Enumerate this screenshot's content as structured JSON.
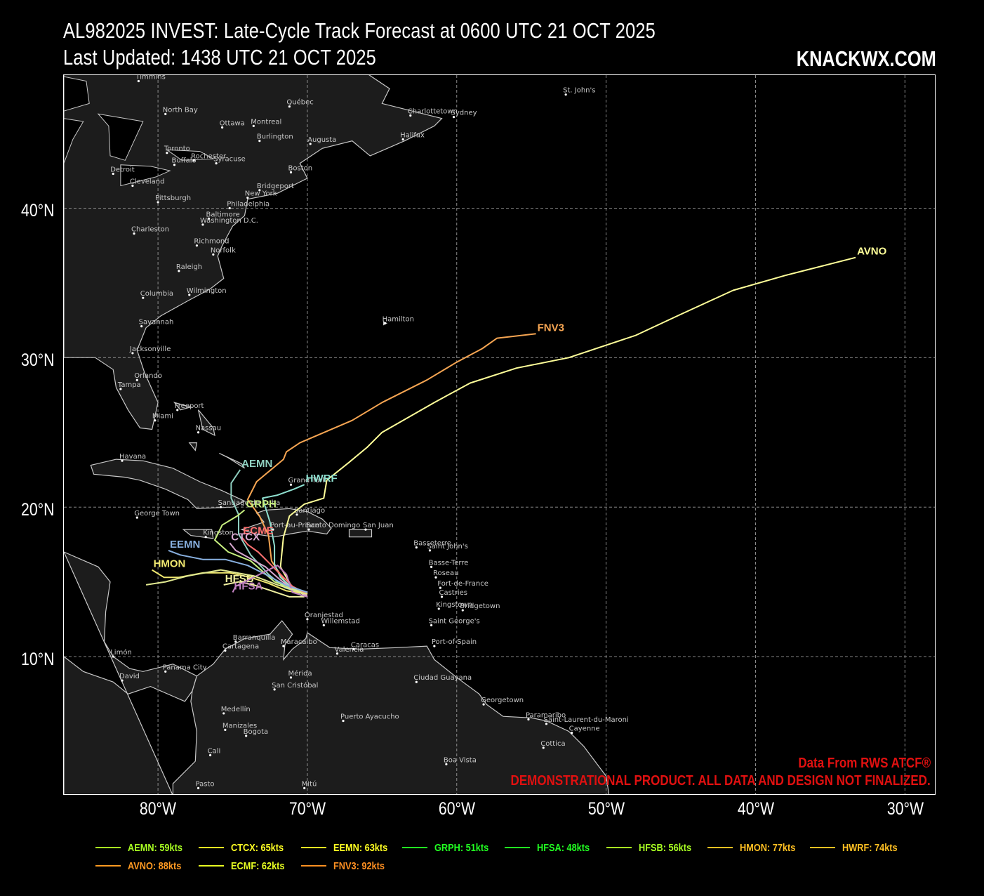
{
  "header": {
    "title_line1": "AL982025 INVEST: Late-Cycle Track Forecast at 0600 UTC 21 OCT 2025",
    "title_line2": "Last Updated: 1438 UTC 21 OCT 2025",
    "brand": "KNACKWX.COM"
  },
  "axes": {
    "lat_ticks": [
      "40°N",
      "30°N",
      "20°N",
      "10°N"
    ],
    "lon_ticks": [
      "80°W",
      "70°W",
      "60°W",
      "50°W",
      "40°W",
      "30°W"
    ],
    "lat_range": [
      0.7,
      48.9
    ],
    "lon_range": [
      -86.3,
      -27.9
    ],
    "grid": true
  },
  "credits": {
    "source": "Data From RWS ATCF®",
    "disclaimer": "DEMONSTRATIONAL PRODUCT. ALL DATA AND DESIGN NOT FINALIZED."
  },
  "cities": [
    {
      "name": "Timmins",
      "lat": 48.5,
      "lon": -81.3
    },
    {
      "name": "North Bay",
      "lat": 46.3,
      "lon": -79.5
    },
    {
      "name": "Ottawa",
      "lat": 45.4,
      "lon": -75.7
    },
    {
      "name": "Montreal",
      "lat": 45.5,
      "lon": -73.6
    },
    {
      "name": "Québec",
      "lat": 46.8,
      "lon": -71.2
    },
    {
      "name": "Charlottetown",
      "lat": 46.2,
      "lon": -63.1
    },
    {
      "name": "Sydney",
      "lat": 46.1,
      "lon": -60.2
    },
    {
      "name": "St. John's",
      "lat": 47.6,
      "lon": -52.7
    },
    {
      "name": "Halifax",
      "lat": 44.6,
      "lon": -63.6
    },
    {
      "name": "Augusta",
      "lat": 44.3,
      "lon": -69.8
    },
    {
      "name": "Burlington",
      "lat": 44.5,
      "lon": -73.2
    },
    {
      "name": "Toronto",
      "lat": 43.7,
      "lon": -79.4
    },
    {
      "name": "Rochester",
      "lat": 43.2,
      "lon": -77.6
    },
    {
      "name": "Syracuse",
      "lat": 43.0,
      "lon": -76.1
    },
    {
      "name": "Buffalo",
      "lat": 42.9,
      "lon": -78.9
    },
    {
      "name": "Detroit",
      "lat": 42.3,
      "lon": -83.0
    },
    {
      "name": "Boston",
      "lat": 42.4,
      "lon": -71.1
    },
    {
      "name": "Cleveland",
      "lat": 41.5,
      "lon": -81.7
    },
    {
      "name": "Bridgeport",
      "lat": 41.2,
      "lon": -73.2
    },
    {
      "name": "New York",
      "lat": 40.7,
      "lon": -74.0
    },
    {
      "name": "Pittsburgh",
      "lat": 40.4,
      "lon": -80.0
    },
    {
      "name": "Philadelphia",
      "lat": 40.0,
      "lon": -75.2
    },
    {
      "name": "Baltimore",
      "lat": 39.3,
      "lon": -76.6
    },
    {
      "name": "Washington D.C.",
      "lat": 38.9,
      "lon": -77.0
    },
    {
      "name": "Charleston",
      "lat": 38.3,
      "lon": -81.6
    },
    {
      "name": "Richmond",
      "lat": 37.5,
      "lon": -77.4
    },
    {
      "name": "Norfolk",
      "lat": 36.9,
      "lon": -76.3
    },
    {
      "name": "Raleigh",
      "lat": 35.8,
      "lon": -78.6
    },
    {
      "name": "Wilmington",
      "lat": 34.2,
      "lon": -77.9
    },
    {
      "name": "Columbia",
      "lat": 34.0,
      "lon": -81.0
    },
    {
      "name": "Savannah",
      "lat": 32.1,
      "lon": -81.1
    },
    {
      "name": "Jacksonville",
      "lat": 30.3,
      "lon": -81.7
    },
    {
      "name": "Orlando",
      "lat": 28.5,
      "lon": -81.4
    },
    {
      "name": "Tampa",
      "lat": 27.9,
      "lon": -82.5
    },
    {
      "name": "Freeport",
      "lat": 26.5,
      "lon": -78.7
    },
    {
      "name": "Miami",
      "lat": 25.8,
      "lon": -80.2
    },
    {
      "name": "Nassau",
      "lat": 25.0,
      "lon": -77.3
    },
    {
      "name": "Hamilton",
      "lat": 32.3,
      "lon": -64.8
    },
    {
      "name": "Havana",
      "lat": 23.1,
      "lon": -82.4
    },
    {
      "name": "Grand Turk",
      "lat": 21.5,
      "lon": -71.1
    },
    {
      "name": "Santiago de Cuba",
      "lat": 20.0,
      "lon": -75.8
    },
    {
      "name": "George Town",
      "lat": 19.3,
      "lon": -81.4
    },
    {
      "name": "Santiago",
      "lat": 19.5,
      "lon": -70.7
    },
    {
      "name": "Port-au-Prince",
      "lat": 18.5,
      "lon": -72.3
    },
    {
      "name": "Santo Domingo",
      "lat": 18.5,
      "lon": -69.9
    },
    {
      "name": "San Juan",
      "lat": 18.5,
      "lon": -66.1
    },
    {
      "name": "Kingston",
      "lat": 18.0,
      "lon": -76.8
    },
    {
      "name": "Basseterre",
      "lat": 17.3,
      "lon": -62.7
    },
    {
      "name": "Saint John's",
      "lat": 17.1,
      "lon": -61.8
    },
    {
      "name": "Basse-Terre",
      "lat": 16.0,
      "lon": -61.7
    },
    {
      "name": "Roseau",
      "lat": 15.3,
      "lon": -61.4
    },
    {
      "name": "Fort-de-France",
      "lat": 14.6,
      "lon": -61.1
    },
    {
      "name": "Castries",
      "lat": 14.0,
      "lon": -61.0
    },
    {
      "name": "Kingstown",
      "lat": 13.2,
      "lon": -61.2
    },
    {
      "name": "Bridgetown",
      "lat": 13.1,
      "lon": -59.6
    },
    {
      "name": "Saint George's",
      "lat": 12.1,
      "lon": -61.7
    },
    {
      "name": "Oranjestad",
      "lat": 12.5,
      "lon": -70.0
    },
    {
      "name": "Willemstad",
      "lat": 12.1,
      "lon": -68.9
    },
    {
      "name": "Barranquilla",
      "lat": 11.0,
      "lon": -74.8
    },
    {
      "name": "Cartagena",
      "lat": 10.4,
      "lon": -75.5
    },
    {
      "name": "Maracaibo",
      "lat": 10.7,
      "lon": -71.6
    },
    {
      "name": "Valencia",
      "lat": 10.2,
      "lon": -68.0
    },
    {
      "name": "Caracas",
      "lat": 10.5,
      "lon": -66.9
    },
    {
      "name": "Port-of-Spain",
      "lat": 10.7,
      "lon": -61.5
    },
    {
      "name": "Limón",
      "lat": 10.0,
      "lon": -83.0
    },
    {
      "name": "Panama City",
      "lat": 9.0,
      "lon": -79.5
    },
    {
      "name": "David",
      "lat": 8.4,
      "lon": -82.4
    },
    {
      "name": "Mérida",
      "lat": 8.6,
      "lon": -71.1
    },
    {
      "name": "San Cristóbal",
      "lat": 7.8,
      "lon": -72.2
    },
    {
      "name": "Ciudad Guayana",
      "lat": 8.3,
      "lon": -62.7
    },
    {
      "name": "Georgetown",
      "lat": 6.8,
      "lon": -58.2
    },
    {
      "name": "Paramaribo",
      "lat": 5.8,
      "lon": -55.2
    },
    {
      "name": "Saint-Laurent-du-Maroni",
      "lat": 5.5,
      "lon": -54.0
    },
    {
      "name": "Cayenne",
      "lat": 4.9,
      "lon": -52.3
    },
    {
      "name": "Cottica",
      "lat": 3.9,
      "lon": -54.2
    },
    {
      "name": "Medellín",
      "lat": 6.2,
      "lon": -75.6
    },
    {
      "name": "Puerto Ayacucho",
      "lat": 5.7,
      "lon": -67.6
    },
    {
      "name": "Manizales",
      "lat": 5.1,
      "lon": -75.5
    },
    {
      "name": "Bogota",
      "lat": 4.7,
      "lon": -74.1
    },
    {
      "name": "Cali",
      "lat": 3.4,
      "lon": -76.5
    },
    {
      "name": "Boa Vista",
      "lat": 2.8,
      "lon": -60.7
    },
    {
      "name": "Pasto",
      "lat": 1.2,
      "lon": -77.3
    },
    {
      "name": "Mitú",
      "lat": 1.2,
      "lon": -70.2
    }
  ],
  "tracks": [
    {
      "model": "AVNO",
      "color": "#ffff99",
      "label_pos": "end",
      "points": [
        [
          14.0,
          -70.0
        ],
        [
          14.6,
          -71.0
        ],
        [
          16.0,
          -71.8
        ],
        [
          18.0,
          -71.6
        ],
        [
          19.4,
          -71.2
        ],
        [
          20.2,
          -70.2
        ],
        [
          20.6,
          -68.9
        ],
        [
          21.8,
          -68.7
        ],
        [
          23.0,
          -67.2
        ],
        [
          24.0,
          -66.0
        ],
        [
          25.0,
          -65.0
        ],
        [
          27.0,
          -61.5
        ],
        [
          28.3,
          -59.1
        ],
        [
          29.3,
          -56.0
        ],
        [
          30.0,
          -52.5
        ],
        [
          31.5,
          -48.0
        ],
        [
          32.9,
          -45.0
        ],
        [
          34.5,
          -41.5
        ],
        [
          35.5,
          -38.0
        ],
        [
          36.7,
          -33.3
        ]
      ]
    },
    {
      "model": "FNV3",
      "color": "#f6a552",
      "label_pos": "end",
      "points": [
        [
          14.1,
          -70.0
        ],
        [
          14.7,
          -71.3
        ],
        [
          16.4,
          -72.4
        ],
        [
          18.1,
          -72.6
        ],
        [
          19.4,
          -73.2
        ],
        [
          20.5,
          -74.0
        ],
        [
          21.7,
          -73.4
        ],
        [
          23.2,
          -71.6
        ],
        [
          23.7,
          -71.4
        ],
        [
          24.3,
          -70.5
        ],
        [
          25.8,
          -67.0
        ],
        [
          27.0,
          -65.0
        ],
        [
          28.5,
          -62.0
        ],
        [
          29.7,
          -60.0
        ],
        [
          30.6,
          -58.3
        ],
        [
          31.3,
          -57.3
        ],
        [
          31.6,
          -54.7
        ]
      ]
    },
    {
      "model": "HWRF",
      "color": "#8fe0d0",
      "label_pos": "end",
      "points": [
        [
          14.0,
          -70.3
        ],
        [
          14.5,
          -70.9
        ],
        [
          15.3,
          -71.8
        ],
        [
          16.2,
          -72.2
        ],
        [
          17.4,
          -72.2
        ],
        [
          19.0,
          -72.5
        ],
        [
          20.6,
          -73.0
        ],
        [
          20.8,
          -72.0
        ],
        [
          21.2,
          -70.9
        ],
        [
          21.5,
          -70.2
        ]
      ]
    },
    {
      "model": "AEMN",
      "color": "#8fcfc0",
      "label_pos": "end",
      "points": [
        [
          14.2,
          -70.2
        ],
        [
          14.6,
          -71.5
        ],
        [
          15.5,
          -72.6
        ],
        [
          16.8,
          -73.8
        ],
        [
          18.2,
          -74.6
        ],
        [
          19.5,
          -74.6
        ],
        [
          20.6,
          -75.1
        ],
        [
          21.6,
          -75.1
        ],
        [
          22.5,
          -74.5
        ]
      ]
    },
    {
      "model": "GRPH",
      "color": "#c8f080",
      "label_pos": "end",
      "points": [
        [
          14.3,
          -70.3
        ],
        [
          15.0,
          -72.2
        ],
        [
          16.4,
          -73.8
        ],
        [
          17.0,
          -75.3
        ],
        [
          17.8,
          -76.2
        ],
        [
          18.8,
          -75.7
        ],
        [
          19.4,
          -74.7
        ],
        [
          19.8,
          -74.2
        ]
      ]
    },
    {
      "model": "ECME",
      "color": "#ff7070",
      "label_pos": "end",
      "points": [
        [
          14.2,
          -70.0
        ],
        [
          14.7,
          -71.0
        ],
        [
          15.5,
          -71.8
        ],
        [
          16.3,
          -72.6
        ],
        [
          17.0,
          -73.3
        ],
        [
          17.5,
          -74.0
        ],
        [
          18.0,
          -74.4
        ]
      ]
    },
    {
      "model": "CTCX",
      "color": "#d8a8d0",
      "label_pos": "end",
      "points": [
        [
          14.1,
          -70.0
        ],
        [
          14.5,
          -71.0
        ],
        [
          15.2,
          -71.9
        ],
        [
          16.0,
          -72.8
        ],
        [
          16.6,
          -73.9
        ],
        [
          17.1,
          -74.8
        ],
        [
          17.6,
          -75.2
        ]
      ]
    },
    {
      "model": "EEMN",
      "color": "#88b0e0",
      "label_pos": "end",
      "points": [
        [
          14.3,
          -70.0
        ],
        [
          14.8,
          -71.5
        ],
        [
          15.5,
          -72.8
        ],
        [
          16.1,
          -74.0
        ],
        [
          16.5,
          -75.5
        ],
        [
          16.5,
          -77.0
        ],
        [
          16.8,
          -78.5
        ],
        [
          17.1,
          -79.3
        ]
      ]
    },
    {
      "model": "HMON",
      "color": "#f0e870",
      "label_pos": "end",
      "points": [
        [
          14.2,
          -70.0
        ],
        [
          14.4,
          -71.4
        ],
        [
          14.9,
          -72.6
        ],
        [
          15.3,
          -73.8
        ],
        [
          15.6,
          -75.2
        ],
        [
          15.6,
          -77.0
        ],
        [
          15.3,
          -78.6
        ],
        [
          15.3,
          -79.6
        ],
        [
          15.8,
          -80.4
        ]
      ]
    },
    {
      "model": "HFSB",
      "color": "#f0f0a0",
      "label_pos": "end",
      "points": [
        [
          14.0,
          -70.2
        ],
        [
          14.0,
          -71.2
        ],
        [
          14.4,
          -72.4
        ],
        [
          14.8,
          -73.6
        ],
        [
          15.0,
          -74.6
        ],
        [
          14.8,
          -75.6
        ]
      ]
    },
    {
      "model": "HFSA",
      "color": "#c080c0",
      "label_pos": "end",
      "points": [
        [
          14.0,
          -70.0
        ],
        [
          14.3,
          -71.0
        ],
        [
          15.5,
          -71.4
        ],
        [
          16.1,
          -72.0
        ],
        [
          15.6,
          -73.0
        ],
        [
          15.1,
          -74.0
        ],
        [
          14.7,
          -74.8
        ],
        [
          14.3,
          -75.0
        ]
      ]
    },
    {
      "model": "WEST",
      "color": "#e0e890",
      "label_pos": "none",
      "points": [
        [
          14.2,
          -70.1
        ],
        [
          14.8,
          -72.0
        ],
        [
          15.4,
          -73.6
        ],
        [
          15.8,
          -75.8
        ],
        [
          15.4,
          -78.0
        ],
        [
          15.0,
          -79.5
        ],
        [
          14.8,
          -80.8
        ]
      ]
    }
  ],
  "legend": [
    {
      "label": "AEMN: 59kts",
      "color": "#a8ff22"
    },
    {
      "label": "CTCX: 65kts",
      "color": "#ffff22"
    },
    {
      "label": "EEMN: 63kts",
      "color": "#ffff22"
    },
    {
      "label": "GRPH: 51kts",
      "color": "#22ff22"
    },
    {
      "label": "HFSA: 48kts",
      "color": "#22ff22"
    },
    {
      "label": "HFSB: 56kts",
      "color": "#a8ff22"
    },
    {
      "label": "HMON: 77kts",
      "color": "#ffc022"
    },
    {
      "label": "HWRF: 74kts",
      "color": "#ffc022"
    },
    {
      "label": "AVNO: 88kts",
      "color": "#ff9a22"
    },
    {
      "label": "ECMF: 62kts",
      "color": "#e8ff22"
    },
    {
      "label": "FNV3: 92kts",
      "color": "#ff9022"
    }
  ]
}
